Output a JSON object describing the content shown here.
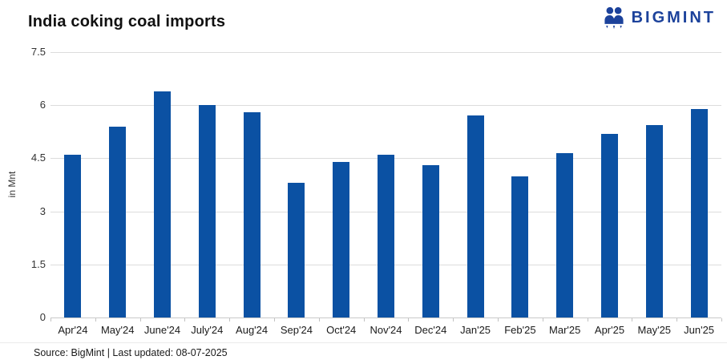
{
  "header": {
    "title": "India coking coal imports",
    "logo": {
      "text": "BIGMINT",
      "color": "#1c429b",
      "icon": "bigmint-people-monogram"
    }
  },
  "chart_data": {
    "type": "bar",
    "title": "India coking coal imports",
    "categories": [
      "Apr'24",
      "May'24",
      "June'24",
      "July'24",
      "Aug'24",
      "Sep'24",
      "Oct'24",
      "Nov'24",
      "Dec'24",
      "Jan'25",
      "Feb'25",
      "Mar'25",
      "Apr'25",
      "May'25",
      "Jun'25"
    ],
    "values": [
      4.6,
      5.4,
      6.4,
      6.0,
      5.8,
      3.8,
      4.4,
      4.6,
      4.3,
      5.7,
      4.0,
      4.65,
      5.2,
      5.45,
      5.9
    ],
    "xlabel": "",
    "ylabel": "in Mnt",
    "ylim": [
      0,
      7.5
    ],
    "yticks": [
      0,
      1.5,
      3,
      4.5,
      6,
      7.5
    ],
    "grid": true,
    "legend_position": "none",
    "bar_color": "#0b51a3",
    "gridline_color": "#dcdcdc",
    "zero_line_color": "#c9c9c9"
  },
  "footer": {
    "text": "Source: BigMint | Last updated: 08-07-2025"
  }
}
